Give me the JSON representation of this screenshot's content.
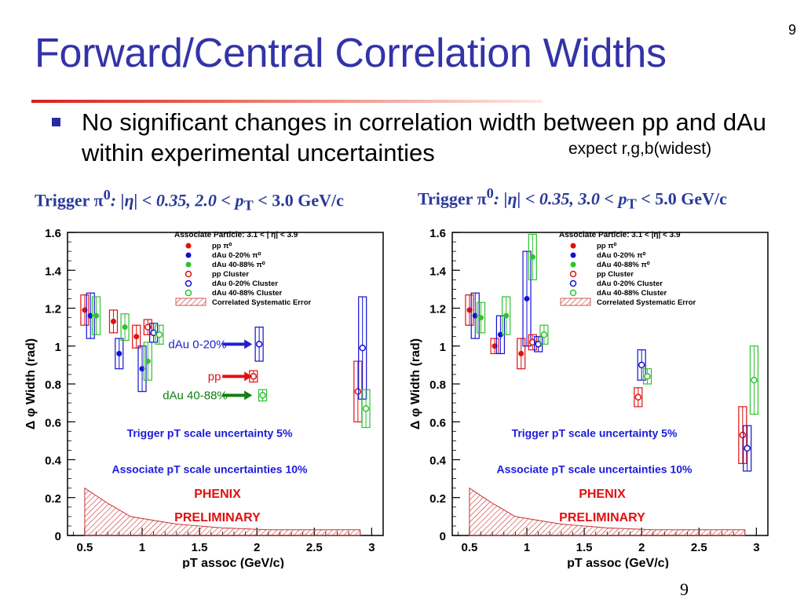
{
  "slide": {
    "title": "Forward/Central Correlation Widths",
    "page_number": "9",
    "bullet": "No significant changes in correlation width between pp and dAu within experimental uncertainties",
    "note": "expect r,g,b(widest)"
  },
  "colors": {
    "title": "#3333a8",
    "pp": "#e01010",
    "dAu020": "#1010d8",
    "dAu4088": "#30c030",
    "sys": "#c83030",
    "annot_blue": "#2020d0",
    "annot_red": "#e01010",
    "accent": "#d82020"
  },
  "chart_data": [
    {
      "type": "scatter",
      "trigger_label": {
        "prefix": "Trigger π",
        "sup": "0",
        "mid": ": |η| < 0.35, 2.0 < p",
        "sub": "T",
        "suffix": " < 3.0 GeV/c"
      },
      "xlabel": "p_T assoc (GeV/c)",
      "ylabel": "Δ φ Width (rad)",
      "xlim": [
        0.35,
        3.1
      ],
      "ylim": [
        0,
        1.6
      ],
      "xticks": [
        "0.5",
        "1",
        "1.5",
        "2",
        "2.5",
        "3"
      ],
      "yticks": [
        "0",
        "0.2",
        "0.4",
        "0.6",
        "0.8",
        "1",
        "1.2",
        "1.4",
        "1.6"
      ],
      "legend_position": "top-right",
      "legend_title": "Associate Particle: 3.1 < | η| < 3.9",
      "legend": [
        "pp  π⁰",
        "dAu 0-20%  π⁰",
        "dAu 40-88%  π⁰",
        "pp Cluster",
        "dAu 0-20% Cluster",
        "dAu 40-88% Cluster",
        "Correlated Systematic Error"
      ],
      "text_blue": [
        "Trigger pT scale uncertainty 5%",
        "Associate pT scale uncertainties 10%"
      ],
      "text_red": [
        "PHENIX",
        "PRELIMINARY"
      ],
      "annotations": [
        {
          "text": "dAu 0-20%",
          "color": "#2020d0",
          "y": 1.01
        },
        {
          "text": "pp",
          "color": "#e01010",
          "y": 0.84
        },
        {
          "text": "dAu 40-88%",
          "color": "#108010",
          "y": 0.74
        }
      ],
      "series": [
        {
          "name": "pp π⁰",
          "style": "filled",
          "color": "#e01010",
          "points": [
            {
              "x": 0.5,
              "y": 1.19,
              "e": 0.08
            },
            {
              "x": 0.75,
              "y": 1.13,
              "e": 0.06
            },
            {
              "x": 0.95,
              "y": 1.05,
              "e": 0.06
            }
          ]
        },
        {
          "name": "dAu 0-20% π⁰",
          "style": "filled",
          "color": "#1010d8",
          "points": [
            {
              "x": 0.55,
              "y": 1.16,
              "e": 0.12
            },
            {
              "x": 0.8,
              "y": 0.96,
              "e": 0.08
            },
            {
              "x": 1.0,
              "y": 0.88,
              "e": 0.12
            }
          ]
        },
        {
          "name": "dAu 40-88% π⁰",
          "style": "filled",
          "color": "#30c030",
          "points": [
            {
              "x": 0.6,
              "y": 1.16,
              "e": 0.1
            },
            {
              "x": 0.85,
              "y": 1.1,
              "e": 0.07
            },
            {
              "x": 1.05,
              "y": 0.92,
              "e": 0.1
            }
          ]
        },
        {
          "name": "pp Cluster",
          "style": "open",
          "color": "#e01010",
          "points": [
            {
              "x": 1.05,
              "y": 1.1,
              "e": 0.04
            },
            {
              "x": 1.97,
              "y": 0.84,
              "e": 0.03
            },
            {
              "x": 2.88,
              "y": 0.76,
              "e": 0.16
            }
          ]
        },
        {
          "name": "dAu 0-20% Cluster",
          "style": "open",
          "color": "#1010d8",
          "points": [
            {
              "x": 1.1,
              "y": 1.07,
              "e": 0.05
            },
            {
              "x": 2.02,
              "y": 1.01,
              "e": 0.09
            },
            {
              "x": 2.92,
              "y": 0.99,
              "e": 0.27
            }
          ]
        },
        {
          "name": "dAu 40-88% Cluster",
          "style": "open",
          "color": "#30c030",
          "points": [
            {
              "x": 1.15,
              "y": 1.06,
              "e": 0.05
            },
            {
              "x": 2.05,
              "y": 0.74,
              "e": 0.03
            },
            {
              "x": 2.95,
              "y": 0.67,
              "e": 0.1
            }
          ]
        }
      ],
      "systematic": {
        "x": [
          0.5,
          0.7,
          0.9,
          1.1,
          1.3,
          1.5,
          1.7,
          1.9,
          2.1,
          2.3,
          2.5,
          2.7,
          2.9
        ],
        "y": [
          0.25,
          0.17,
          0.1,
          0.08,
          0.06,
          0.05,
          0.04,
          0.035,
          0.03,
          0.03,
          0.03,
          0.03,
          0.03
        ]
      }
    },
    {
      "type": "scatter",
      "trigger_label": {
        "prefix": "Trigger π",
        "sup": "0",
        "mid": ": |η| < 0.35, 3.0 < p",
        "sub": "T",
        "suffix": " < 5.0 GeV/c"
      },
      "xlabel": "p_T assoc (GeV/c)",
      "ylabel": "Δ φ Width (rad)",
      "xlim": [
        0.35,
        3.1
      ],
      "ylim": [
        0,
        1.6
      ],
      "xticks": [
        "0.5",
        "1",
        "1.5",
        "2",
        "2.5",
        "3"
      ],
      "yticks": [
        "0",
        "0.2",
        "0.4",
        "0.6",
        "0.8",
        "1",
        "1.2",
        "1.4",
        "1.6"
      ],
      "legend_position": "top-right",
      "legend_title": "Associate Particle: 3.1 < |η| < 3.9",
      "legend": [
        "pp  π⁰",
        "dAu 0-20%  π⁰",
        "dAu 40-88%  π⁰",
        "pp Cluster",
        "dAu 0-20% Cluster",
        "dAu 40-88% Cluster",
        "Correlated Systematic Error"
      ],
      "text_blue": [
        "Trigger pT scale uncertainty 5%",
        "Associate pT scale uncertainties 10%"
      ],
      "text_red": [
        "PHENIX",
        "PRELIMINARY"
      ],
      "annotations": [],
      "series": [
        {
          "name": "pp π⁰",
          "style": "filled",
          "color": "#e01010",
          "points": [
            {
              "x": 0.5,
              "y": 1.19,
              "e": 0.08
            },
            {
              "x": 0.72,
              "y": 1.0,
              "e": 0.04
            },
            {
              "x": 0.95,
              "y": 0.96,
              "e": 0.08
            }
          ]
        },
        {
          "name": "dAu 0-20% π⁰",
          "style": "filled",
          "color": "#1010d8",
          "points": [
            {
              "x": 0.55,
              "y": 1.16,
              "e": 0.12
            },
            {
              "x": 0.77,
              "y": 1.06,
              "e": 0.1
            },
            {
              "x": 1.0,
              "y": 1.25,
              "e": 0.25
            }
          ]
        },
        {
          "name": "dAu 40-88% π⁰",
          "style": "filled",
          "color": "#30c030",
          "points": [
            {
              "x": 0.6,
              "y": 1.15,
              "e": 0.08
            },
            {
              "x": 0.82,
              "y": 1.16,
              "e": 0.1
            },
            {
              "x": 1.05,
              "y": 1.47,
              "e": 0.12
            }
          ]
        },
        {
          "name": "pp Cluster",
          "style": "open",
          "color": "#e01010",
          "points": [
            {
              "x": 1.05,
              "y": 1.02,
              "e": 0.04
            },
            {
              "x": 1.97,
              "y": 0.73,
              "e": 0.05
            },
            {
              "x": 2.88,
              "y": 0.53,
              "e": 0.15
            }
          ]
        },
        {
          "name": "dAu 0-20% Cluster",
          "style": "open",
          "color": "#1010d8",
          "points": [
            {
              "x": 1.1,
              "y": 1.01,
              "e": 0.04
            },
            {
              "x": 2.0,
              "y": 0.9,
              "e": 0.08
            },
            {
              "x": 2.92,
              "y": 0.46,
              "e": 0.12
            }
          ]
        },
        {
          "name": "dAu 40-88% Cluster",
          "style": "open",
          "color": "#30c030",
          "points": [
            {
              "x": 1.15,
              "y": 1.06,
              "e": 0.05
            },
            {
              "x": 2.05,
              "y": 0.84,
              "e": 0.04
            },
            {
              "x": 2.98,
              "y": 0.82,
              "e": 0.18
            }
          ]
        }
      ],
      "systematic": {
        "x": [
          0.5,
          0.7,
          0.9,
          1.1,
          1.3,
          1.5,
          1.7,
          1.9,
          2.1,
          2.3,
          2.5,
          2.7,
          2.9
        ],
        "y": [
          0.25,
          0.17,
          0.1,
          0.08,
          0.06,
          0.05,
          0.04,
          0.035,
          0.03,
          0.03,
          0.03,
          0.03,
          0.03
        ]
      }
    }
  ]
}
